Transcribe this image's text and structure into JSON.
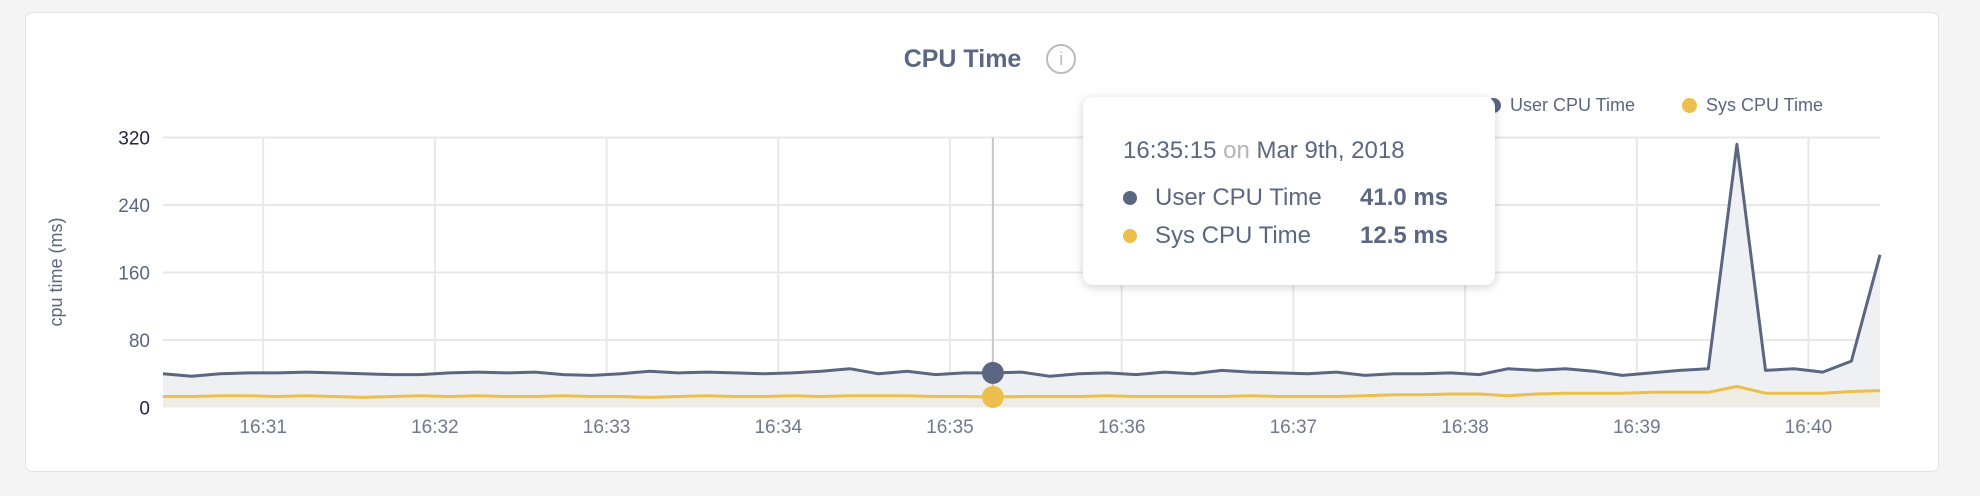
{
  "chart_data": {
    "type": "area",
    "title": "CPU Time",
    "ylabel": "cpu time (ms)",
    "xlabel": "",
    "ylim": [
      0,
      320
    ],
    "yticks": [
      "0",
      "80",
      "160",
      "240",
      "320"
    ],
    "ytick_values": [
      0,
      80,
      160,
      240,
      320
    ],
    "xlim": [
      "16:30:25",
      "16:40:25"
    ],
    "xticks": [
      "16:31",
      "16:32",
      "16:33",
      "16:34",
      "16:35",
      "16:36",
      "16:37",
      "16:38",
      "16:39",
      "16:40"
    ],
    "grid": true,
    "legend_position": "top-right",
    "x_start": "16:30:25",
    "x_step_seconds": 10,
    "series": [
      {
        "name": "User CPU Time",
        "color": "#5b6680",
        "values": [
          40,
          37,
          40,
          41,
          41,
          42,
          41,
          40,
          39,
          39,
          41,
          42,
          41,
          42,
          39,
          38,
          40,
          43,
          41,
          42,
          41,
          40,
          41,
          43,
          46,
          40,
          43,
          39,
          41,
          41,
          42,
          37,
          40,
          41,
          39,
          42,
          40,
          44,
          42,
          41,
          40,
          42,
          38,
          40,
          40,
          41,
          39,
          46,
          44,
          46,
          43,
          38,
          41,
          44,
          46,
          312,
          44,
          46,
          42,
          55,
          181
        ]
      },
      {
        "name": "Sys CPU Time",
        "color": "#ecbf4d",
        "values": [
          13,
          13,
          14,
          14,
          13,
          14,
          13,
          12,
          13,
          14,
          13,
          14,
          13,
          13,
          14,
          13,
          13,
          12,
          13,
          14,
          13,
          13,
          14,
          13,
          14,
          14,
          14,
          13,
          13,
          12.5,
          13,
          13,
          13,
          14,
          13,
          13,
          13,
          13,
          14,
          13,
          13,
          13,
          14,
          15,
          15,
          16,
          16,
          14,
          16,
          17,
          17,
          17,
          18,
          18,
          18,
          25,
          17,
          17,
          17,
          19,
          20
        ]
      }
    ]
  },
  "info_icon": "info-circle-icon",
  "info_glyph": "i",
  "tooltip": {
    "time": "16:35:15",
    "on": "on",
    "date": "Mar 9th, 2018",
    "hover_index": 29,
    "rows": [
      {
        "label": "User CPU Time",
        "value": "41.0 ms",
        "color": "#5b6680"
      },
      {
        "label": "Sys CPU Time",
        "value": "12.5 ms",
        "color": "#ecbf4d"
      }
    ]
  }
}
